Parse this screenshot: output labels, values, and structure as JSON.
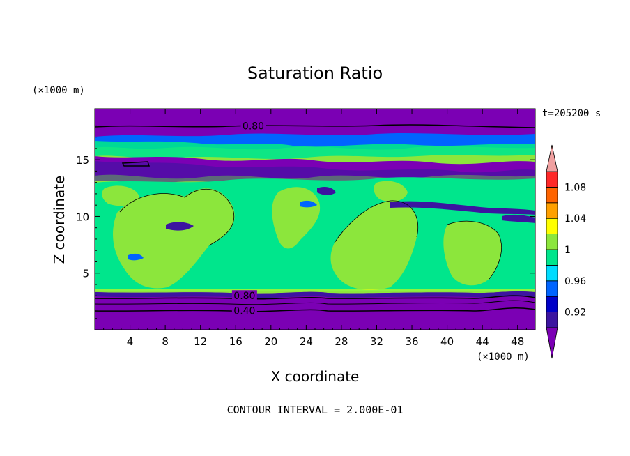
{
  "chart_data": {
    "type": "heatmap",
    "title": "Saturation Ratio",
    "xlabel": "X coordinate",
    "ylabel": "Z coordinate",
    "x_units": "(×1000 m)",
    "y_units": "(×1000 m)",
    "xlim": [
      0,
      50
    ],
    "ylim": [
      0,
      19.5
    ],
    "x_ticks": [
      4,
      8,
      12,
      16,
      20,
      24,
      28,
      32,
      36,
      40,
      44,
      48
    ],
    "y_ticks": [
      5,
      10,
      15
    ],
    "time_label": "t=205200 s",
    "contour_interval": "CONTOUR INTERVAL = 2.000E-01",
    "contour_lines": [
      {
        "label": "0.80",
        "z": 18,
        "label_x": 18
      },
      {
        "label": "0.80",
        "z": 3,
        "label_x": 17
      },
      {
        "label": "0.40",
        "z": 1.7,
        "label_x": 17
      }
    ],
    "colorbar": {
      "levels": [
        0.9,
        0.92,
        0.94,
        0.96,
        0.98,
        1.0,
        1.02,
        1.04,
        1.06,
        1.08,
        1.1
      ],
      "tick_labels": [
        "1.08",
        "1.04",
        "1",
        "0.96",
        "0.92"
      ],
      "tick_values": [
        1.08,
        1.04,
        1.0,
        0.96,
        0.92
      ],
      "under_color": "#7b00b4",
      "over_color": "#f0a0a0",
      "colors": [
        "#3c14a0",
        "#0000c8",
        "#0064ff",
        "#00dcff",
        "#00e68c",
        "#8ce63c",
        "#ffff00",
        "#ffa000",
        "#ff6400",
        "#ff2828"
      ]
    },
    "layers": [
      {
        "z": [
          0,
          3.2
        ],
        "value": "below 0.90"
      },
      {
        "z": [
          3.2,
          3.5
        ],
        "value": "1.00-1.06"
      },
      {
        "z": [
          3.5,
          13.5
        ],
        "value": "0.98-1.02"
      },
      {
        "z": [
          13.5,
          17
        ],
        "value": "0.90-1.00"
      },
      {
        "z": [
          17,
          19.5
        ],
        "value": "below 0.90"
      }
    ]
  }
}
